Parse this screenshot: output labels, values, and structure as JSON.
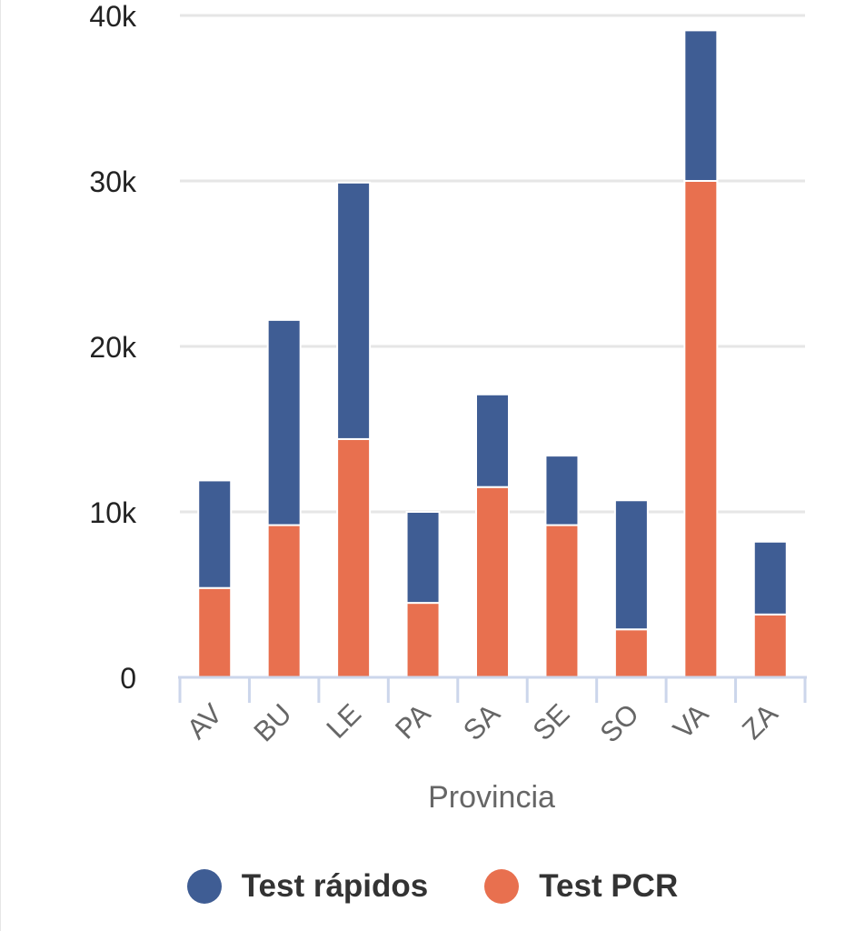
{
  "chart_data": {
    "type": "bar",
    "stacked": true,
    "title": "",
    "xlabel": "Provincia",
    "ylabel": "",
    "categories": [
      "AV",
      "BU",
      "LE",
      "PA",
      "SA",
      "SE",
      "SO",
      "VA",
      "ZA"
    ],
    "series": [
      {
        "name": "Test PCR",
        "color": "#e8704f",
        "values": [
          5400,
          9200,
          14400,
          4500,
          11500,
          9200,
          2900,
          30000,
          3800
        ]
      },
      {
        "name": "Test rápidos",
        "color": "#3f5d94",
        "values": [
          6500,
          12400,
          15500,
          5500,
          5600,
          4200,
          7800,
          9100,
          4400
        ]
      }
    ],
    "ylim": [
      0,
      40000
    ],
    "yticks": [
      0,
      10000,
      20000,
      30000,
      40000
    ],
    "ytick_labels": [
      "0",
      "10k",
      "20k",
      "30k",
      "40k"
    ],
    "grid": true,
    "legend_position": "bottom"
  },
  "legend": {
    "items": [
      {
        "label": "Test rápidos",
        "color": "#3f5d94"
      },
      {
        "label": "Test PCR",
        "color": "#e8704f"
      }
    ]
  }
}
